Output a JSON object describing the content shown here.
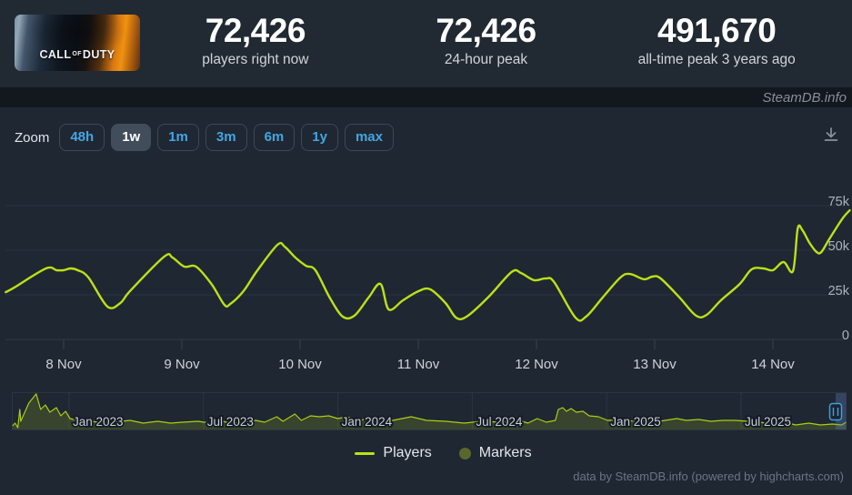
{
  "header": {
    "game_capsule": {
      "call": "CALL",
      "of": "OF",
      "duty": "DUTY"
    },
    "stats": [
      {
        "value": "72,426",
        "label": "players right now"
      },
      {
        "value": "72,426",
        "label": "24-hour peak"
      },
      {
        "value": "491,670",
        "label": "all-time peak 3 years ago"
      }
    ]
  },
  "watermark": "SteamDB.info",
  "toolbar": {
    "zoom_label": "Zoom",
    "buttons": [
      {
        "label": "48h",
        "selected": false
      },
      {
        "label": "1w",
        "selected": true
      },
      {
        "label": "1m",
        "selected": false
      },
      {
        "label": "3m",
        "selected": false
      },
      {
        "label": "6m",
        "selected": false
      },
      {
        "label": "1y",
        "selected": false
      },
      {
        "label": "max",
        "selected": false
      }
    ],
    "download_icon": "download-icon"
  },
  "legend": [
    {
      "name": "Players",
      "type": "line",
      "color": "#bce114"
    },
    {
      "name": "Markers",
      "type": "circle",
      "color": "#5a672b"
    }
  ],
  "footer_credit": "data by SteamDB.info (powered by highcharts.com)",
  "colors": {
    "header_bg": "#212a33",
    "strip_bg": "#13171e",
    "panel_bg": "#1f2733",
    "accent_blue": "#42a6e3",
    "series_green": "#bce114",
    "navigator_fill": "rgba(188,225,20,0.16)",
    "navigator_stroke": "#a9cf15",
    "gridline": "#2a333f",
    "handle_blue": "#3f9edb"
  },
  "chart_data": [
    {
      "type": "line",
      "series_name": "Players",
      "title": "",
      "x_axis": {
        "unit": "days from 8 Nov 00:00",
        "tick_labels": [
          "8 Nov",
          "9 Nov",
          "10 Nov",
          "11 Nov",
          "12 Nov",
          "13 Nov",
          "14 Nov"
        ],
        "tick_positions": [
          0,
          1,
          2,
          3,
          4,
          5,
          6
        ]
      },
      "y_axis": {
        "unit": "players",
        "tick_labels": [
          "0",
          "25k",
          "50k",
          "75k"
        ],
        "tick_values": [
          0,
          25000,
          50000,
          75000
        ],
        "range_drawn": [
          0,
          98000
        ]
      },
      "grid": "horizontal-only",
      "points": [
        [
          -0.49,
          26500
        ],
        [
          -0.42,
          29000
        ],
        [
          -0.15,
          39800
        ],
        [
          -0.06,
          38800
        ],
        [
          0,
          38800
        ],
        [
          0.06,
          39800
        ],
        [
          0.12,
          38800
        ],
        [
          0.21,
          34700
        ],
        [
          0.37,
          18400
        ],
        [
          0.48,
          20400
        ],
        [
          0.56,
          27000
        ],
        [
          0.85,
          46400
        ],
        [
          0.92,
          45900
        ],
        [
          1.02,
          40800
        ],
        [
          1.12,
          40800
        ],
        [
          1.25,
          31100
        ],
        [
          1.36,
          19400
        ],
        [
          1.41,
          19900
        ],
        [
          1.52,
          27000
        ],
        [
          1.64,
          38800
        ],
        [
          1.81,
          53100
        ],
        [
          1.87,
          52000
        ],
        [
          1.96,
          45900
        ],
        [
          2.05,
          41300
        ],
        [
          2.13,
          38800
        ],
        [
          2.25,
          23500
        ],
        [
          2.36,
          12800
        ],
        [
          2.46,
          13300
        ],
        [
          2.58,
          23500
        ],
        [
          2.68,
          31100
        ],
        [
          2.75,
          16800
        ],
        [
          2.87,
          21900
        ],
        [
          3,
          27000
        ],
        [
          3.1,
          28100
        ],
        [
          3.23,
          20400
        ],
        [
          3.32,
          12200
        ],
        [
          3.41,
          12800
        ],
        [
          3.59,
          23500
        ],
        [
          3.79,
          37800
        ],
        [
          3.87,
          37200
        ],
        [
          3.98,
          33200
        ],
        [
          4.08,
          34200
        ],
        [
          4.15,
          32100
        ],
        [
          4.33,
          12200
        ],
        [
          4.42,
          12800
        ],
        [
          4.56,
          23500
        ],
        [
          4.71,
          34700
        ],
        [
          4.79,
          36700
        ],
        [
          4.91,
          33700
        ],
        [
          4.98,
          35200
        ],
        [
          5.05,
          34200
        ],
        [
          5.21,
          23500
        ],
        [
          5.35,
          13300
        ],
        [
          5.44,
          13800
        ],
        [
          5.56,
          21900
        ],
        [
          5.72,
          31100
        ],
        [
          5.82,
          39300
        ],
        [
          5.92,
          39800
        ],
        [
          6,
          38800
        ],
        [
          6.09,
          43400
        ],
        [
          6.17,
          38300
        ],
        [
          6.21,
          62200
        ],
        [
          6.25,
          61200
        ],
        [
          6.31,
          54100
        ],
        [
          6.37,
          49000
        ],
        [
          6.41,
          49000
        ],
        [
          6.48,
          56600
        ],
        [
          6.59,
          67900
        ],
        [
          6.65,
          72400
        ]
      ]
    },
    {
      "type": "area",
      "series_name": "Players (navigator, full history)",
      "x_axis": {
        "unit": "months from Jan 2023",
        "tick_labels": [
          "Jan 2023",
          "Jul 2023",
          "Jan 2024",
          "Jul 2024",
          "Jan 2025",
          "Jul 2025"
        ],
        "tick_positions": [
          0,
          6,
          12,
          18,
          24,
          30
        ]
      },
      "y_axis": {
        "unit": "players",
        "range_drawn": [
          0,
          505000
        ]
      },
      "selected_range_note": "navigator selection covers the rightmost sliver (last week)",
      "points": [
        [
          -2.53,
          50000
        ],
        [
          -2.41,
          88000
        ],
        [
          -2.29,
          25000
        ],
        [
          -2.2,
          276000
        ],
        [
          -2.16,
          113000
        ],
        [
          -1.8,
          364000
        ],
        [
          -1.47,
          491000
        ],
        [
          -1.27,
          276000
        ],
        [
          -1.06,
          339000
        ],
        [
          -0.86,
          239000
        ],
        [
          -0.57,
          301000
        ],
        [
          -0.37,
          188000
        ],
        [
          -0.16,
          251000
        ],
        [
          0.04,
          151000
        ],
        [
          0.37,
          126000
        ],
        [
          0.98,
          113000
        ],
        [
          1.67,
          88000
        ],
        [
          2.33,
          113000
        ],
        [
          2.73,
          126000
        ],
        [
          3.31,
          88000
        ],
        [
          3.96,
          113000
        ],
        [
          4.53,
          88000
        ],
        [
          5.06,
          100000
        ],
        [
          5.76,
          113000
        ],
        [
          6.29,
          88000
        ],
        [
          6.69,
          126000
        ],
        [
          7.22,
          88000
        ],
        [
          7.8,
          100000
        ],
        [
          8.33,
          126000
        ],
        [
          8.73,
          100000
        ],
        [
          9.27,
          176000
        ],
        [
          9.55,
          113000
        ],
        [
          10.08,
          214000
        ],
        [
          10.37,
          126000
        ],
        [
          10.78,
          188000
        ],
        [
          11.18,
          176000
        ],
        [
          11.59,
          188000
        ],
        [
          12,
          151000
        ],
        [
          12.41,
          176000
        ],
        [
          12.82,
          126000
        ],
        [
          13.63,
          151000
        ],
        [
          14.45,
          126000
        ],
        [
          15.27,
          176000
        ],
        [
          15.96,
          126000
        ],
        [
          16.82,
          113000
        ],
        [
          17.63,
          88000
        ],
        [
          18.45,
          113000
        ],
        [
          19.27,
          100000
        ],
        [
          20.08,
          126000
        ],
        [
          20.49,
          88000
        ],
        [
          20.9,
          151000
        ],
        [
          21.31,
          100000
        ],
        [
          21.71,
          126000
        ],
        [
          21.84,
          276000
        ],
        [
          22.04,
          301000
        ],
        [
          22.2,
          251000
        ],
        [
          22.41,
          289000
        ],
        [
          22.65,
          239000
        ],
        [
          22.94,
          251000
        ],
        [
          23.22,
          188000
        ],
        [
          23.63,
          176000
        ],
        [
          24.04,
          126000
        ],
        [
          24.45,
          138000
        ],
        [
          24.86,
          113000
        ],
        [
          25.51,
          126000
        ],
        [
          26.08,
          100000
        ],
        [
          26.61,
          126000
        ],
        [
          27.14,
          151000
        ],
        [
          27.55,
          126000
        ],
        [
          28.12,
          138000
        ],
        [
          28.65,
          113000
        ],
        [
          29.18,
          126000
        ],
        [
          29.76,
          126000
        ],
        [
          30.29,
          113000
        ],
        [
          30.82,
          100000
        ],
        [
          31.39,
          75000
        ],
        [
          31.92,
          100000
        ],
        [
          32.45,
          63000
        ],
        [
          33.02,
          88000
        ],
        [
          33.55,
          63000
        ],
        [
          34.08,
          75000
        ],
        [
          34.49,
          63000
        ],
        [
          34.69,
          100000
        ]
      ]
    }
  ]
}
